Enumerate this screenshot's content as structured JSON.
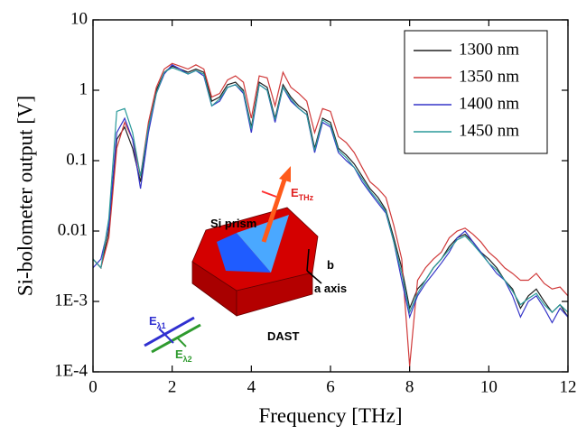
{
  "chart_data": {
    "type": "line",
    "x_label": "Frequency [THz]",
    "y_label": "Si-bolometer output [V]",
    "yscale": "log",
    "xlim": [
      0,
      12
    ],
    "ylim": [
      0.0001,
      10
    ],
    "xticks": [
      0,
      2,
      4,
      6,
      8,
      10,
      12
    ],
    "yticks": [
      {
        "value": 0.0001,
        "label": "1E-4"
      },
      {
        "value": 0.001,
        "label": "1E-3"
      },
      0.01,
      0.1,
      1,
      10
    ],
    "legend": "upper right",
    "x": [
      0,
      0.2,
      0.4,
      0.6,
      0.8,
      1,
      1.2,
      1.4,
      1.6,
      1.8,
      2,
      2.2,
      2.4,
      2.6,
      2.8,
      3,
      3.2,
      3.4,
      3.6,
      3.8,
      4,
      4.2,
      4.4,
      4.6,
      4.8,
      5,
      5.2,
      5.4,
      5.6,
      5.8,
      6,
      6.2,
      6.4,
      6.6,
      6.8,
      7,
      7.2,
      7.4,
      7.6,
      7.8,
      8,
      8.2,
      8.4,
      8.6,
      8.8,
      9,
      9.2,
      9.4,
      9.6,
      9.8,
      10,
      10.2,
      10.4,
      10.6,
      10.8,
      11,
      11.2,
      11.4,
      11.6,
      11.8,
      12
    ],
    "series": [
      {
        "name": "1300 nm",
        "color": "#222222",
        "values": [
          0.004,
          0.003,
          0.01,
          0.2,
          0.3,
          0.15,
          0.05,
          0.3,
          1.0,
          1.8,
          2.2,
          2.0,
          1.8,
          2.0,
          1.8,
          0.7,
          0.8,
          1.2,
          1.3,
          1.0,
          0.3,
          1.3,
          1.1,
          0.4,
          1.2,
          0.8,
          0.6,
          0.5,
          0.15,
          0.4,
          0.35,
          0.15,
          0.12,
          0.09,
          0.06,
          0.04,
          0.03,
          0.02,
          0.008,
          0.003,
          0.0008,
          0.0015,
          0.002,
          0.003,
          0.004,
          0.006,
          0.008,
          0.009,
          0.007,
          0.005,
          0.004,
          0.003,
          0.002,
          0.0015,
          0.0008,
          0.0012,
          0.0015,
          0.001,
          0.0007,
          0.0009,
          0.0006
        ]
      },
      {
        "name": "1350 nm",
        "color": "#d03a3a",
        "values": [
          0.004,
          0.003,
          0.008,
          0.15,
          0.35,
          0.2,
          0.06,
          0.35,
          1.1,
          2.0,
          2.4,
          2.2,
          2.0,
          2.3,
          2.0,
          0.8,
          0.9,
          1.4,
          1.6,
          1.3,
          0.4,
          1.6,
          1.5,
          0.6,
          1.8,
          1.1,
          0.9,
          0.7,
          0.25,
          0.55,
          0.5,
          0.22,
          0.18,
          0.13,
          0.08,
          0.05,
          0.04,
          0.03,
          0.012,
          0.004,
          0.00012,
          0.002,
          0.003,
          0.004,
          0.005,
          0.008,
          0.01,
          0.011,
          0.009,
          0.007,
          0.005,
          0.004,
          0.003,
          0.0025,
          0.002,
          0.002,
          0.0025,
          0.0018,
          0.0015,
          0.0016,
          0.0012
        ]
      },
      {
        "name": "1400 nm",
        "color": "#3535c8",
        "values": [
          0.003,
          0.004,
          0.012,
          0.25,
          0.4,
          0.2,
          0.04,
          0.25,
          0.9,
          1.7,
          2.3,
          2.0,
          1.7,
          1.9,
          1.6,
          0.6,
          0.7,
          1.1,
          1.2,
          0.9,
          0.25,
          1.2,
          1.0,
          0.35,
          1.1,
          0.7,
          0.55,
          0.45,
          0.13,
          0.35,
          0.3,
          0.13,
          0.1,
          0.08,
          0.05,
          0.035,
          0.025,
          0.018,
          0.007,
          0.002,
          0.0006,
          0.0012,
          0.0018,
          0.0025,
          0.0035,
          0.005,
          0.008,
          0.01,
          0.007,
          0.005,
          0.0035,
          0.0025,
          0.002,
          0.0012,
          0.0006,
          0.001,
          0.0012,
          0.0008,
          0.0005,
          0.0008,
          0.0006
        ]
      },
      {
        "name": "1450 nm",
        "color": "#2a9a9a",
        "values": [
          0.004,
          0.003,
          0.015,
          0.5,
          0.55,
          0.25,
          0.06,
          0.3,
          0.9,
          1.8,
          2.1,
          1.9,
          1.7,
          1.9,
          1.7,
          0.6,
          0.75,
          1.1,
          1.2,
          0.95,
          0.28,
          1.2,
          1.0,
          0.38,
          1.1,
          0.75,
          0.55,
          0.45,
          0.14,
          0.38,
          0.32,
          0.14,
          0.11,
          0.08,
          0.055,
          0.037,
          0.027,
          0.019,
          0.007,
          0.0025,
          0.0007,
          0.0013,
          0.002,
          0.003,
          0.004,
          0.0055,
          0.0075,
          0.0085,
          0.0065,
          0.0048,
          0.0035,
          0.0028,
          0.002,
          0.0014,
          0.0009,
          0.0011,
          0.0013,
          0.0009,
          0.0007,
          0.0009,
          0.0007
        ]
      }
    ],
    "annotations": [
      {
        "text": "Si prism"
      },
      {
        "text": "E",
        "sub": "THz"
      },
      {
        "text": "b"
      },
      {
        "text": "a axis"
      },
      {
        "text": "DAST"
      },
      {
        "text": "E",
        "sub": "λ1"
      },
      {
        "text": "E",
        "sub": "λ2"
      }
    ]
  }
}
